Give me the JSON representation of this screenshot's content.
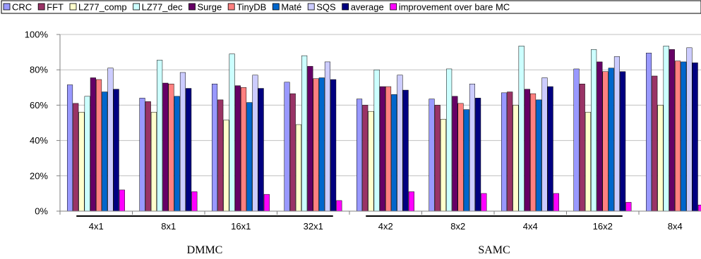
{
  "chart_data": {
    "type": "bar",
    "title": "",
    "xlabel": "",
    "ylabel": "",
    "ylim": [
      0,
      100
    ],
    "yticks": [
      "0%",
      "20%",
      "40%",
      "60%",
      "80%",
      "100%"
    ],
    "grid": true,
    "legend_position": "top",
    "categories": [
      "4x1",
      "8x1",
      "16x1",
      "32x1",
      "4x2",
      "8x2",
      "4x4",
      "16x2",
      "8x4"
    ],
    "groups": [
      {
        "label": "DMMC",
        "categories": [
          "4x1",
          "8x1",
          "16x1",
          "32x1"
        ]
      },
      {
        "label": "SAMC",
        "categories": [
          "4x2",
          "8x2",
          "4x4",
          "16x2"
        ]
      }
    ],
    "series": [
      {
        "name": "CRC",
        "color": "#9999ff",
        "values": [
          71.5,
          64,
          72,
          73,
          63.5,
          63.5,
          67,
          80.5,
          89.5
        ]
      },
      {
        "name": "FFT",
        "color": "#993366",
        "values": [
          61,
          62,
          63,
          66.5,
          60,
          60,
          67.5,
          72,
          76.5
        ]
      },
      {
        "name": "LZ77_comp",
        "color": "#ffffcc",
        "values": [
          56,
          56,
          51.5,
          49,
          56.5,
          52,
          60,
          56,
          60
        ]
      },
      {
        "name": "LZ77_dec",
        "color": "#ccffff",
        "values": [
          65,
          85.5,
          89,
          88,
          80,
          80.5,
          93.5,
          91.5,
          93.5
        ]
      },
      {
        "name": "Surge",
        "color": "#660066",
        "values": [
          75.5,
          72.5,
          71,
          82,
          70.5,
          65,
          69,
          84.5,
          91.5
        ]
      },
      {
        "name": "TinyDB",
        "color": "#ff8080",
        "values": [
          74.5,
          72,
          70,
          75,
          70.5,
          61,
          66.5,
          79,
          85
        ]
      },
      {
        "name": "Maté",
        "color": "#0066cc",
        "values": [
          67.5,
          65,
          61.5,
          75.5,
          66,
          57.5,
          63,
          81,
          84.5
        ]
      },
      {
        "name": "SQS",
        "color": "#ccccff",
        "values": [
          81,
          78.5,
          77,
          84.5,
          77,
          72,
          75.5,
          87.5,
          92.5
        ]
      },
      {
        "name": "average",
        "color": "#000080",
        "values": [
          69,
          69.5,
          69.5,
          74.5,
          68.5,
          64,
          70.5,
          79,
          84
        ]
      },
      {
        "name": "improvement over bare MC",
        "color": "#ff00ff",
        "values": [
          12,
          11,
          9.5,
          6,
          11,
          10,
          10,
          5,
          3.5
        ]
      }
    ]
  }
}
